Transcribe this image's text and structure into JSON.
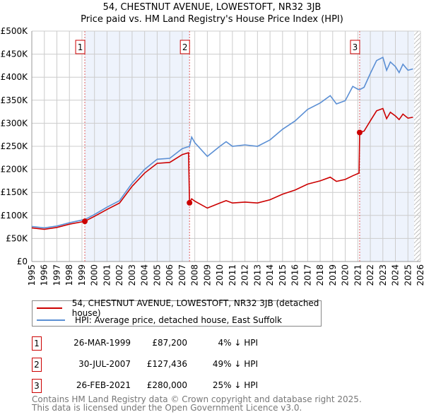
{
  "title_line1": "54, CHESTNUT AVENUE, LOWESTOFT, NR32 3JB",
  "title_line2": "Price paid vs. HM Land Registry's House Price Index (HPI)",
  "chart_data": {
    "type": "line",
    "title": "54, CHESTNUT AVENUE, LOWESTOFT, NR32 3JB — Price paid vs. HM Land Registry's House Price Index (HPI)",
    "xlim": [
      1995,
      2026
    ],
    "ylim": [
      0,
      500000
    ],
    "x_ticks": [
      "1995",
      "1996",
      "1997",
      "1998",
      "1999",
      "2000",
      "2001",
      "2002",
      "2003",
      "2004",
      "2005",
      "2006",
      "2007",
      "2008",
      "2009",
      "2010",
      "2011",
      "2012",
      "2013",
      "2014",
      "2015",
      "2016",
      "2017",
      "2018",
      "2019",
      "2020",
      "2021",
      "2022",
      "2023",
      "2024",
      "2025",
      "2026"
    ],
    "y_ticks": [
      {
        "v": 0,
        "label": "£0"
      },
      {
        "v": 50000,
        "label": "£50K"
      },
      {
        "v": 100000,
        "label": "£100K"
      },
      {
        "v": 150000,
        "label": "£150K"
      },
      {
        "v": 200000,
        "label": "£200K"
      },
      {
        "v": 250000,
        "label": "£250K"
      },
      {
        "v": 300000,
        "label": "£300K"
      },
      {
        "v": 350000,
        "label": "£350K"
      },
      {
        "v": 400000,
        "label": "£400K"
      },
      {
        "v": 450000,
        "label": "£450K"
      },
      {
        "v": 500000,
        "label": "£500K"
      }
    ],
    "grid": true,
    "shaded_ranges": [
      [
        1999.23,
        2007.58
      ],
      [
        2021.15,
        2025.5
      ]
    ],
    "hatched_from": 2025.5,
    "series": [
      {
        "name": "54, CHESTNUT AVENUE, LOWESTOFT, NR32 3JB (detached house)",
        "color": "#cc0000",
        "x": [
          1995,
          1996,
          1997,
          1998,
          1999,
          1999.23,
          2000,
          2001,
          2002,
          2003,
          2004,
          2005,
          2006,
          2007,
          2007.5,
          2007.58,
          2007.75,
          2008,
          2009,
          2010,
          2010.5,
          2011,
          2012,
          2013,
          2014,
          2015,
          2016,
          2017,
          2018,
          2018.8,
          2019.3,
          2020,
          2020.6,
          2021.1,
          2021.15,
          2021.5,
          2022,
          2022.5,
          2023,
          2023.3,
          2023.6,
          2024,
          2024.3,
          2024.6,
          2025,
          2025.4
        ],
        "y": [
          73000,
          70000,
          74000,
          81000,
          86000,
          87200,
          98000,
          113000,
          127000,
          163000,
          192000,
          213000,
          215000,
          232000,
          236000,
          127436,
          136000,
          131000,
          116000,
          127000,
          132000,
          127000,
          129000,
          127000,
          134000,
          146000,
          155000,
          168000,
          175000,
          183000,
          174000,
          178000,
          186000,
          192000,
          280000,
          283000,
          305000,
          327000,
          332000,
          310000,
          324000,
          316000,
          308000,
          320000,
          311000,
          313000
        ]
      },
      {
        "name": "HPI: Average price, detached house, East Suffolk",
        "color": "#5b8fd4",
        "x": [
          1995,
          1996,
          1997,
          1998,
          1999,
          1999.23,
          2000,
          2001,
          2002,
          2003,
          2004,
          2005,
          2006,
          2007,
          2007.58,
          2007.75,
          2008,
          2009,
          2010,
          2010.5,
          2011,
          2012,
          2013,
          2014,
          2015,
          2016,
          2017,
          2018,
          2018.8,
          2019.3,
          2020,
          2020.6,
          2021,
          2021.15,
          2021.5,
          2022,
          2022.5,
          2023,
          2023.3,
          2023.6,
          2024,
          2024.3,
          2024.6,
          2025,
          2025.4
        ],
        "y": [
          76000,
          73000,
          77000,
          84000,
          90000,
          91000,
          102000,
          118000,
          132000,
          170000,
          200000,
          222000,
          224000,
          245000,
          250000,
          270000,
          258000,
          228000,
          250000,
          260000,
          250000,
          253000,
          250000,
          264000,
          287000,
          305000,
          330000,
          344000,
          360000,
          342000,
          349000,
          380000,
          374000,
          373000,
          378000,
          408000,
          436000,
          443000,
          415000,
          433000,
          423000,
          410000,
          428000,
          415000,
          418000
        ]
      }
    ],
    "annotations": [
      {
        "label": "1",
        "x": 1999.23,
        "y": 87200
      },
      {
        "label": "2",
        "x": 2007.58,
        "y": 127436
      },
      {
        "label": "3",
        "x": 2021.15,
        "y": 280000
      }
    ]
  },
  "legend": {
    "red_label": "54, CHESTNUT AVENUE, LOWESTOFT, NR32 3JB (detached house)",
    "blue_label": "HPI: Average price, detached house, East Suffolk"
  },
  "sales": [
    {
      "num": "1",
      "date": "26-MAR-1999",
      "price": "£87,200",
      "hpi": "4% ↓ HPI"
    },
    {
      "num": "2",
      "date": "30-JUL-2007",
      "price": "£127,436",
      "hpi": "49% ↓ HPI"
    },
    {
      "num": "3",
      "date": "26-FEB-2021",
      "price": "£280,000",
      "hpi": "25% ↓ HPI"
    }
  ],
  "footer": {
    "line1": "Contains HM Land Registry data © Crown copyright and database right 2025.",
    "line2": "This data is licensed under the Open Government Licence v3.0."
  }
}
